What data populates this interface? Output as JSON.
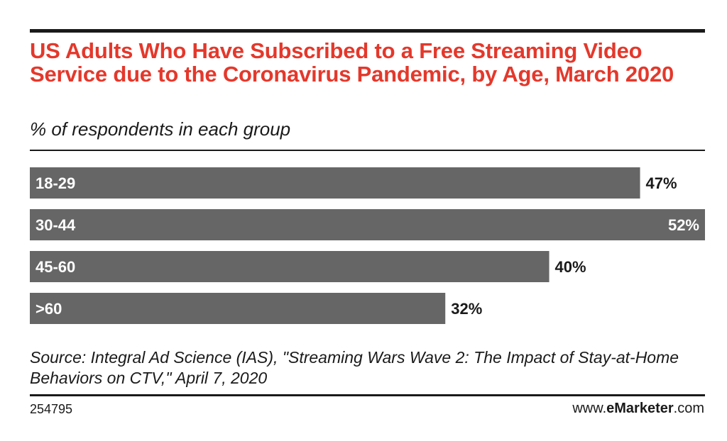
{
  "chart_data": {
    "type": "bar",
    "orientation": "horizontal",
    "title": "US Adults Who Have Subscribed to a Free Streaming Video Service due to the Coronavirus Pandemic, by Age, March 2020",
    "subtitle": "% of respondents in each group",
    "categories": [
      "18-29",
      "30-44",
      "45-60",
      ">60"
    ],
    "values": [
      47,
      52,
      40,
      32
    ],
    "value_labels": [
      "47%",
      "52%",
      "40%",
      "32%"
    ],
    "xlim": [
      0,
      52
    ],
    "bar_color": "#666666",
    "title_color": "#e4382b"
  },
  "footer": {
    "source": "Source: Integral Ad Science (IAS), \"Streaming Wars Wave 2: The Impact of Stay-at-Home Behaviors on CTV,\" April 7, 2020",
    "chart_id": "254795",
    "brand_prefix": "www.",
    "brand_bold": "eMarketer",
    "brand_suffix": ".com"
  }
}
